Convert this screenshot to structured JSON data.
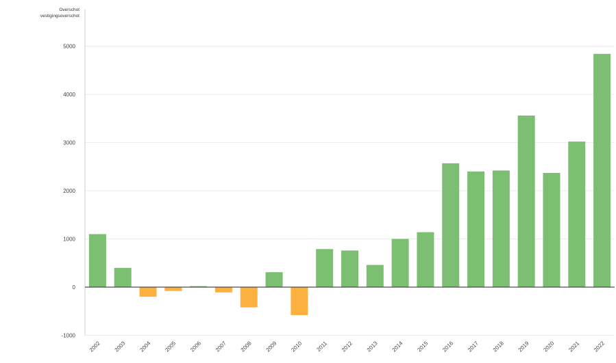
{
  "chart_data": {
    "type": "bar",
    "title": "",
    "xlabel": "",
    "ylabel": [
      "Overschot",
      "vestigingsoverschot"
    ],
    "categories": [
      "2002",
      "2003",
      "2004",
      "2005",
      "2006",
      "2007",
      "2008",
      "2009",
      "2010",
      "2011",
      "2012",
      "2013",
      "2014",
      "2015",
      "2016",
      "2017",
      "2018",
      "2019",
      "2020",
      "2021",
      "2022"
    ],
    "values": [
      1100,
      400,
      -200,
      -80,
      20,
      -110,
      -420,
      310,
      -580,
      790,
      760,
      460,
      1000,
      1140,
      2570,
      2400,
      2420,
      3560,
      2370,
      3020,
      4840
    ],
    "ylim": [
      -1000,
      5200
    ],
    "yticks": [
      -1000,
      0,
      1000,
      2000,
      3000,
      4000,
      5000
    ],
    "grid": true,
    "legend": "none",
    "colors": {
      "positive": "#7dbf72",
      "negative": "#fbb040",
      "grid": "#ebebeb",
      "baseline": "#4a4a4a",
      "axis": "#cfcfcf"
    }
  }
}
